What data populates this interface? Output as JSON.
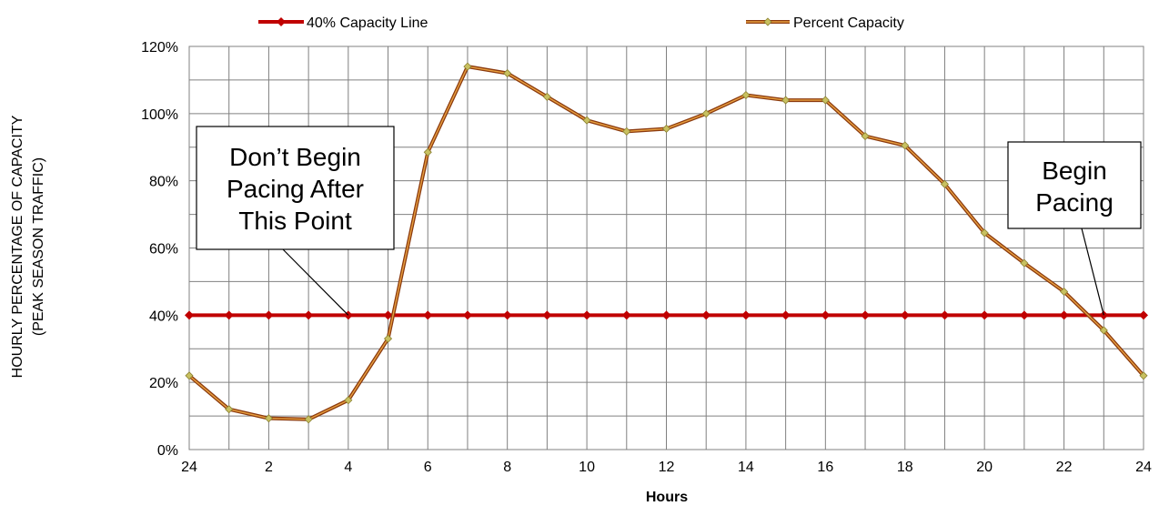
{
  "chart_data": {
    "type": "line",
    "xlabel": "Hours",
    "ylabel_line1": "HOURLY  PERCENTAGE  OF  CAPACITY",
    "ylabel_line2": "(PEAK SEASON TRAFFIC)",
    "x": [
      0,
      1,
      2,
      3,
      4,
      5,
      6,
      7,
      8,
      9,
      10,
      11,
      12,
      13,
      14,
      15,
      16,
      17,
      18,
      19,
      20,
      21,
      22,
      23,
      24
    ],
    "x_ticks": [
      0,
      2,
      4,
      6,
      8,
      10,
      12,
      14,
      16,
      18,
      20,
      22,
      24
    ],
    "x_tick_labels": [
      "24",
      "2",
      "4",
      "6",
      "8",
      "10",
      "12",
      "14",
      "16",
      "18",
      "20",
      "22",
      "24"
    ],
    "xlim": [
      0,
      24
    ],
    "ylim": [
      0,
      120
    ],
    "y_ticks": [
      0,
      20,
      40,
      60,
      80,
      100,
      120
    ],
    "y_tick_labels": [
      "0%",
      "20%",
      "40%",
      "60%",
      "80%",
      "100%",
      "120%"
    ],
    "grid": true,
    "legend_position": "top",
    "series": [
      {
        "name": "40% Capacity Line",
        "color": "#c00000",
        "values": [
          40,
          40,
          40,
          40,
          40,
          40,
          40,
          40,
          40,
          40,
          40,
          40,
          40,
          40,
          40,
          40,
          40,
          40,
          40,
          40,
          40,
          40,
          40,
          40,
          40
        ]
      },
      {
        "name": "Percent Capacity",
        "color": "#b5651d",
        "marker_color": "#c8c060",
        "values": [
          22,
          12,
          9.3,
          9,
          14.7,
          33,
          88.5,
          114,
          112,
          105,
          98,
          94.7,
          95.5,
          100,
          105.5,
          104,
          104,
          93.3,
          90.5,
          79,
          64.5,
          55.5,
          47,
          35.5,
          22
        ]
      }
    ],
    "annotations": [
      {
        "text_lines": [
          "Don’t Begin",
          "Pacing After",
          "This Point"
        ],
        "x": 4,
        "y": 40
      },
      {
        "text_lines": [
          "Begin",
          "Pacing"
        ],
        "x": 23,
        "y": 40
      }
    ]
  }
}
